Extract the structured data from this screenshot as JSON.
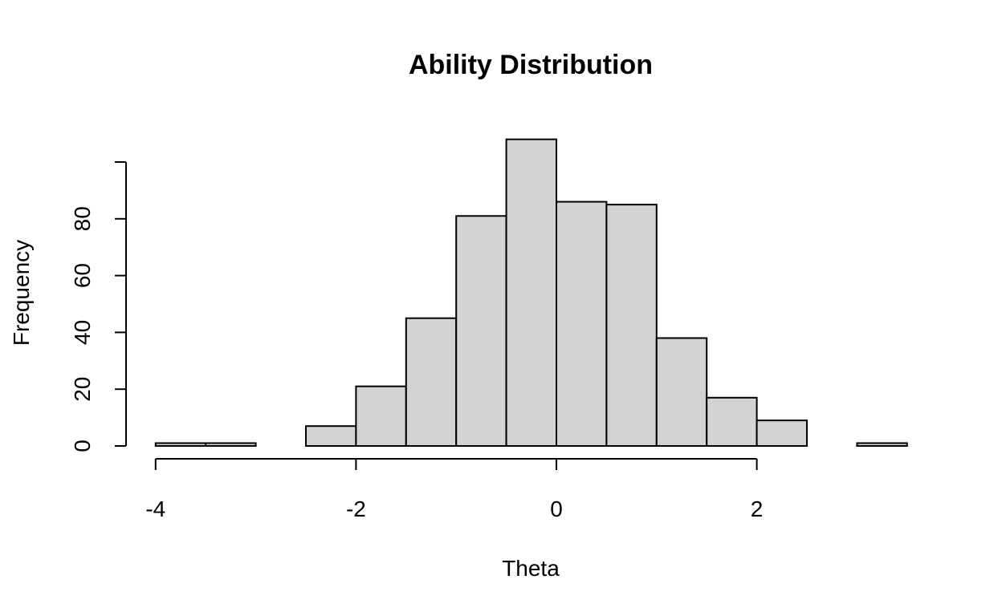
{
  "chart_data": {
    "type": "bar",
    "subtype": "histogram",
    "title": "Ability Distribution",
    "xlabel": "Theta",
    "ylabel": "Frequency",
    "bins": [
      {
        "from": -4.0,
        "to": -3.5,
        "count": 1
      },
      {
        "from": -3.5,
        "to": -3.0,
        "count": 1
      },
      {
        "from": -3.0,
        "to": -2.5,
        "count": 0
      },
      {
        "from": -2.5,
        "to": -2.0,
        "count": 7
      },
      {
        "from": -2.0,
        "to": -1.5,
        "count": 21
      },
      {
        "from": -1.5,
        "to": -1.0,
        "count": 45
      },
      {
        "from": -1.0,
        "to": -0.5,
        "count": 81
      },
      {
        "from": -0.5,
        "to": 0.0,
        "count": 108
      },
      {
        "from": 0.0,
        "to": 0.5,
        "count": 86
      },
      {
        "from": 0.5,
        "to": 1.0,
        "count": 85
      },
      {
        "from": 1.0,
        "to": 1.5,
        "count": 38
      },
      {
        "from": 1.5,
        "to": 2.0,
        "count": 17
      },
      {
        "from": 2.0,
        "to": 2.5,
        "count": 9
      },
      {
        "from": 2.5,
        "to": 3.0,
        "count": 0
      },
      {
        "from": 3.0,
        "to": 3.5,
        "count": 1
      }
    ],
    "x_ticks": [
      -4,
      -2,
      0,
      2
    ],
    "x_tick_labels": [
      "-4",
      "-2",
      "0",
      "2"
    ],
    "y_ticks": [
      0,
      20,
      40,
      60,
      80,
      100
    ],
    "y_tick_labels": [
      "0",
      "20",
      "40",
      "60",
      "80",
      ""
    ],
    "xlim": [
      -4,
      3.5
    ],
    "ylim": [
      0,
      108
    ],
    "bar_color": "#d3d3d3",
    "edge_color": "#000000",
    "grid": false,
    "legend": "none"
  }
}
